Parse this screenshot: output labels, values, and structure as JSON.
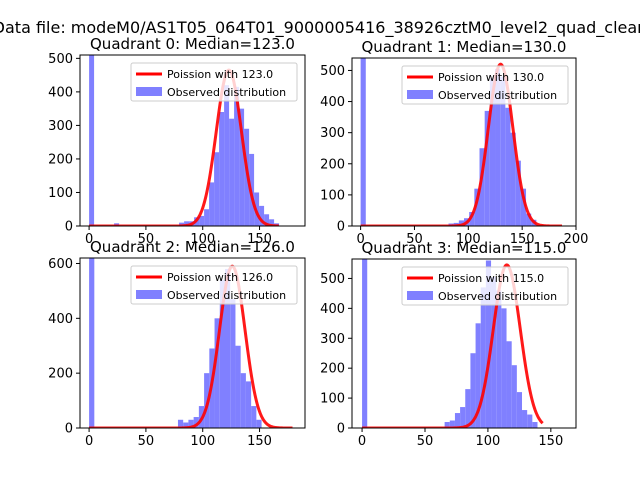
{
  "suptitle": "Data file: modeM0/AS1T05_064T01_9000005416_38926cztM0_level2_quad_clean",
  "colors": {
    "fit": "#ff0000",
    "hist": "#8080ff",
    "axes": "#000000"
  },
  "chart_data": [
    {
      "type": "bar",
      "title": "Quadrant 0: Median=123.0",
      "legend": [
        "Poission with 123.0",
        "Observed distribution"
      ],
      "legend_loc": "top-right",
      "xlim": [
        -8,
        190
      ],
      "ylim": [
        0,
        510
      ],
      "xticks": [
        0,
        50,
        100,
        150
      ],
      "yticks": [
        0,
        100,
        200,
        300,
        400,
        500
      ],
      "median": 123,
      "bins": {
        "start": 0,
        "width": 4.4
      },
      "values": [
        510,
        0,
        0,
        0,
        0,
        8,
        0,
        0,
        0,
        0,
        0,
        0,
        0,
        0,
        0,
        0,
        0,
        0,
        10,
        14,
        14,
        26,
        30,
        50,
        130,
        220,
        340,
        420,
        320,
        415,
        350,
        290,
        215,
        100,
        60,
        35,
        20,
        8
      ],
      "fit": {
        "mu": 123,
        "peak": 465
      }
    },
    {
      "type": "bar",
      "title": "Quadrant 1: Median=130.0",
      "legend": [
        "Poission with 130.0",
        "Observed distribution"
      ],
      "legend_loc": "top-right",
      "xlim": [
        -8,
        200
      ],
      "ylim": [
        0,
        540
      ],
      "xticks": [
        0,
        50,
        100,
        150,
        200
      ],
      "yticks": [
        0,
        100,
        200,
        300,
        400,
        500
      ],
      "median": 130,
      "bins": {
        "start": 0,
        "width": 4.8
      },
      "values": [
        540,
        0,
        0,
        0,
        0,
        0,
        0,
        0,
        0,
        0,
        0,
        0,
        0,
        0,
        0,
        0,
        0,
        8,
        10,
        18,
        25,
        45,
        120,
        250,
        370,
        475,
        505,
        480,
        380,
        300,
        210,
        120,
        40,
        20,
        0,
        0,
        0,
        0,
        0
      ],
      "fit": {
        "mu": 130,
        "peak": 520
      }
    },
    {
      "type": "bar",
      "title": "Quadrant 2: Median=126.0",
      "legend": [
        "Poission with 126.0",
        "Observed distribution"
      ],
      "legend_loc": "top-right",
      "xlim": [
        -8,
        190
      ],
      "ylim": [
        0,
        620
      ],
      "xticks": [
        0,
        50,
        100,
        150
      ],
      "yticks": [
        0,
        200,
        400,
        600
      ],
      "median": 126,
      "bins": {
        "start": 0,
        "width": 4.6
      },
      "values": [
        620,
        0,
        0,
        0,
        0,
        0,
        0,
        0,
        0,
        0,
        0,
        0,
        0,
        0,
        0,
        0,
        0,
        30,
        20,
        30,
        40,
        80,
        200,
        290,
        400,
        540,
        580,
        470,
        300,
        200,
        170,
        80,
        30,
        0,
        0,
        0,
        0,
        0,
        0
      ],
      "fit": {
        "mu": 126,
        "peak": 590
      }
    },
    {
      "type": "bar",
      "title": "Quadrant 3: Median=115.0",
      "legend": [
        "Poission with 115.0",
        "Observed distribution"
      ],
      "legend_loc": "top-right",
      "xlim": [
        -8,
        170
      ],
      "ylim": [
        0,
        565
      ],
      "xticks": [
        0,
        50,
        100,
        150
      ],
      "yticks": [
        0,
        100,
        200,
        300,
        400,
        500
      ],
      "median": 115,
      "bins": {
        "start": 0,
        "width": 4.1
      },
      "values": [
        565,
        0,
        0,
        0,
        0,
        0,
        0,
        0,
        0,
        0,
        0,
        0,
        0,
        0,
        0,
        0,
        20,
        25,
        50,
        70,
        130,
        250,
        350,
        470,
        560,
        505,
        460,
        400,
        290,
        210,
        120,
        60,
        45,
        20,
        0
      ],
      "fit": {
        "mu": 115,
        "peak": 545
      }
    }
  ]
}
